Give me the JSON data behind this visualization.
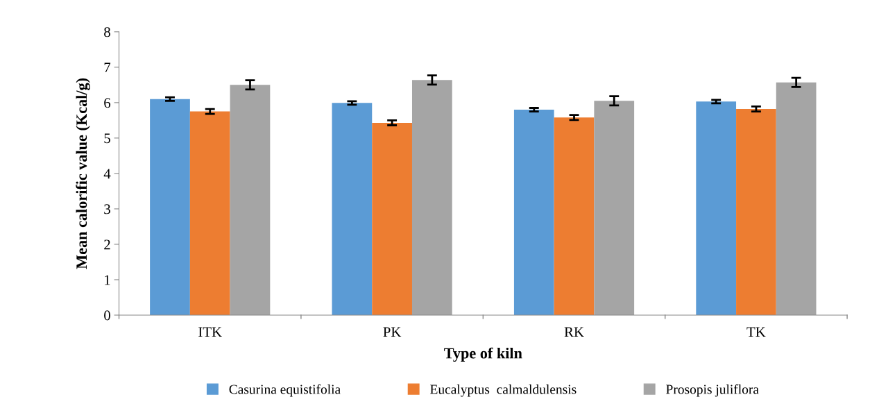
{
  "chart_data": {
    "type": "bar",
    "xlabel": "Type of kiln",
    "ylabel": "Mean calorific value (Kcal/g)",
    "categories": [
      "ITK",
      "PK",
      "RK",
      "TK"
    ],
    "series": [
      {
        "name": "Casurina equistifolia",
        "color": "#5b9bd5",
        "values": [
          6.1,
          5.99,
          5.8,
          6.03
        ],
        "errors": [
          0.05,
          0.05,
          0.05,
          0.05
        ]
      },
      {
        "name": "Eucalyptus  calmaldulensis",
        "color": "#ed7d31",
        "values": [
          5.75,
          5.43,
          5.58,
          5.82
        ],
        "errors": [
          0.07,
          0.07,
          0.07,
          0.07
        ]
      },
      {
        "name": "Prosopis juliflora",
        "color": "#a5a5a5",
        "values": [
          6.5,
          6.64,
          6.05,
          6.57
        ],
        "errors": [
          0.13,
          0.13,
          0.13,
          0.13
        ]
      }
    ],
    "ylim": [
      0,
      8
    ],
    "yticks": [
      0,
      1,
      2,
      3,
      4,
      5,
      6,
      7,
      8
    ],
    "grid": false,
    "legend": "bottom"
  }
}
